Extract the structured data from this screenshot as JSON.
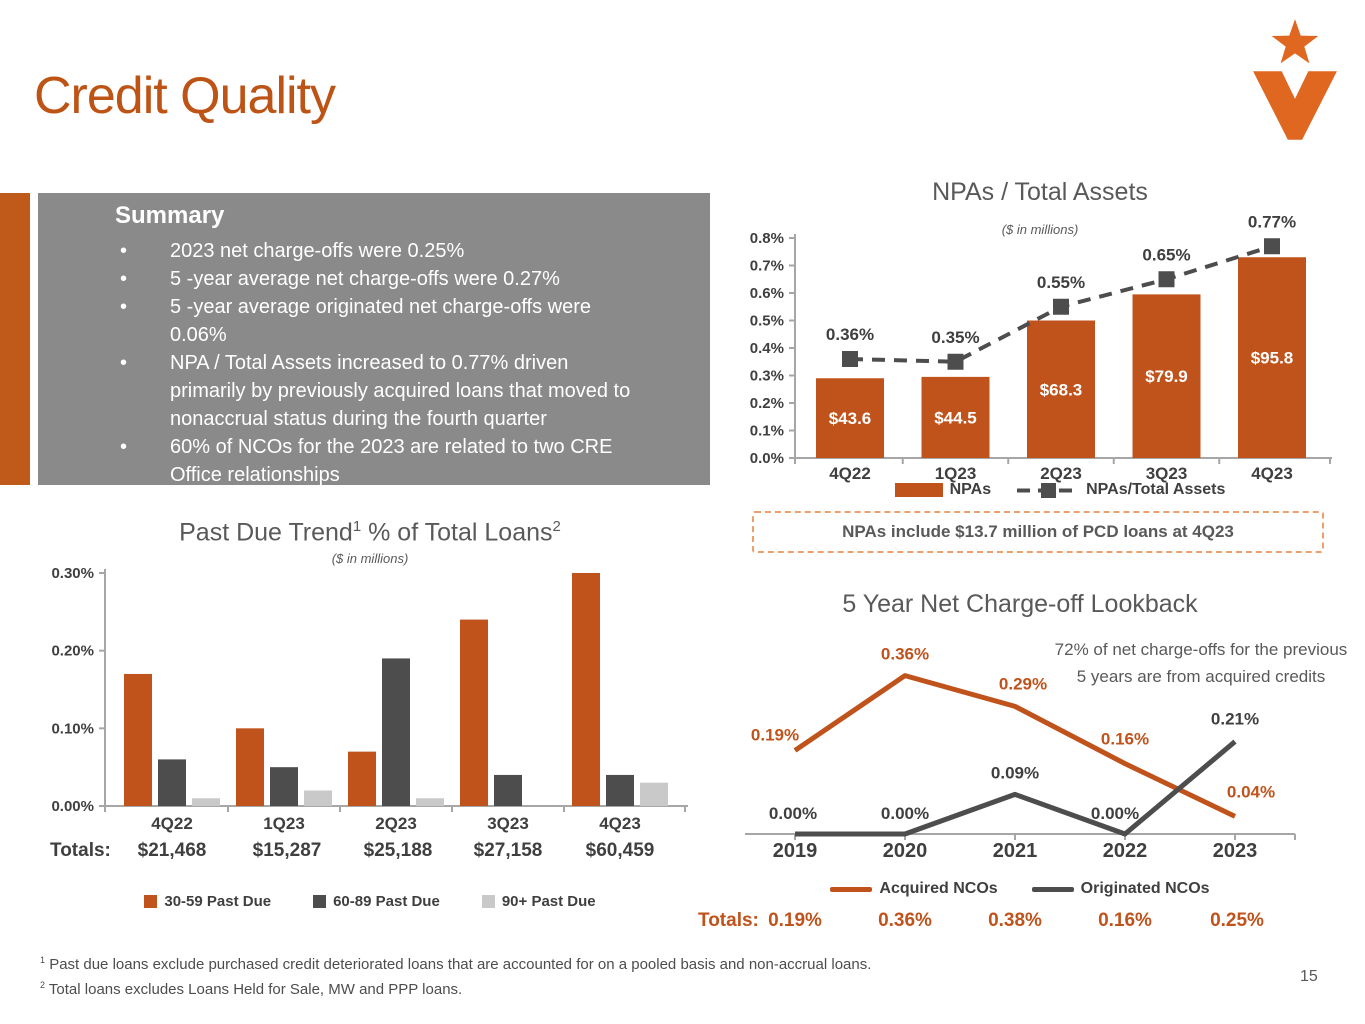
{
  "slide": {
    "title": "Credit Quality",
    "page_number": "15",
    "logo_icon": "star-v-logo",
    "colors": {
      "accent_orange": "#C0531B",
      "logo_orange": "#DF671F",
      "dark_gray": "#4D4D4D",
      "light_gray": "#C9C9C9",
      "summary_bg": "#8A8A8A",
      "chart_title_gray": "#595959",
      "note_border_orange": "#ECA06E"
    },
    "footnotes": [
      {
        "sup": "1",
        "text": "Past due loans exclude purchased credit deteriorated loans that are accounted for on a pooled basis and non-accrual loans."
      },
      {
        "sup": "2",
        "text": "Total loans excludes Loans Held for Sale, MW and PPP loans."
      }
    ]
  },
  "summary": {
    "heading": "Summary",
    "bullets": [
      "2023 net charge-offs were 0.25%",
      "5 -year average net charge-offs were 0.27%",
      "5 -year average originated net charge-offs were 0.06%",
      "NPA / Total Assets increased to 0.77% driven primarily by previously acquired loans that moved to nonaccrual status during the fourth quarter",
      "60% of NCOs for the 2023 are related to two CRE Office relationships"
    ]
  },
  "npa_note": {
    "text": "NPAs include $13.7 million of PCD loans at 4Q23"
  },
  "chart_data": [
    {
      "id": "npas_total_assets",
      "type": "bar",
      "title": "NPAs / Total Assets",
      "subtitle": "($ in millions)",
      "categories": [
        "4Q22",
        "1Q23",
        "2Q23",
        "3Q23",
        "4Q23"
      ],
      "ylim": [
        0,
        0.8
      ],
      "yticks": [
        "0.0%",
        "0.1%",
        "0.2%",
        "0.3%",
        "0.4%",
        "0.5%",
        "0.6%",
        "0.7%",
        "0.8%"
      ],
      "legend_position": "bottom",
      "grid": false,
      "series": [
        {
          "name": "NPAs",
          "type": "bar",
          "color": "#C0531B",
          "values_millions": [
            43.6,
            44.5,
            68.3,
            79.9,
            95.8
          ],
          "bar_heights_pct": [
            0.29,
            0.295,
            0.5,
            0.595,
            0.73
          ],
          "labels": [
            "$43.6",
            "$44.5",
            "$68.3",
            "$79.9",
            "$95.8"
          ]
        },
        {
          "name": "NPAs/Total Assets",
          "type": "dashed-line-square-marker",
          "color": "#4D4D4D",
          "values_pct": [
            0.36,
            0.35,
            0.55,
            0.65,
            0.77
          ],
          "labels": [
            "0.36%",
            "0.35%",
            "0.55%",
            "0.65%",
            "0.77%"
          ]
        }
      ]
    },
    {
      "id": "past_due_trend",
      "type": "bar",
      "title_main": "Past Due Trend",
      "title_sup1": "1",
      "title_rest": " % of Total Loans",
      "title_sup2": "2",
      "subtitle": "($ in millions)",
      "categories": [
        "4Q22",
        "1Q23",
        "2Q23",
        "3Q23",
        "4Q23"
      ],
      "ylim": [
        0,
        0.3
      ],
      "yticks": [
        "0.00%",
        "0.10%",
        "0.20%",
        "0.30%"
      ],
      "legend_position": "bottom",
      "grid": false,
      "series": [
        {
          "name": "30-59 Past Due",
          "color": "#C0531B",
          "values": [
            0.17,
            0.1,
            0.07,
            0.24,
            0.3
          ]
        },
        {
          "name": "60-89 Past Due",
          "color": "#4D4D4D",
          "values": [
            0.06,
            0.05,
            0.19,
            0.04,
            0.04
          ]
        },
        {
          "name": "90+ Past Due",
          "color": "#C9C9C9",
          "values": [
            0.01,
            0.02,
            0.01,
            0.0,
            0.03
          ]
        }
      ],
      "totals_label": "Totals:",
      "totals": [
        "$21,468",
        "$15,287",
        "$25,188",
        "$27,158",
        "$60,459"
      ]
    },
    {
      "id": "five_year_nco_lookback",
      "type": "line",
      "title": "5 Year Net Charge-off Lookback",
      "annotation_line1": "72% of net charge-offs for the previous",
      "annotation_line2": "5 years are from acquired credits",
      "categories": [
        "2019",
        "2020",
        "2021",
        "2022",
        "2023"
      ],
      "ylim": [
        0,
        0.4
      ],
      "grid": false,
      "legend_position": "bottom",
      "series": [
        {
          "name": "Acquired NCOs",
          "color": "#C0531B",
          "values": [
            0.19,
            0.36,
            0.29,
            0.16,
            0.04
          ],
          "labels": [
            "0.19%",
            "0.36%",
            "0.29%",
            "0.16%",
            "0.04%"
          ]
        },
        {
          "name": "Originated NCOs",
          "color": "#4D4D4D",
          "values": [
            0.0,
            0.0,
            0.09,
            0.0,
            0.21
          ],
          "labels": [
            "0.00%",
            "0.00%",
            "0.09%",
            "0.00%",
            "0.21%"
          ]
        }
      ],
      "totals_label": "Totals:",
      "totals": [
        "0.19%",
        "0.36%",
        "0.38%",
        "0.16%",
        "0.25%"
      ]
    }
  ]
}
